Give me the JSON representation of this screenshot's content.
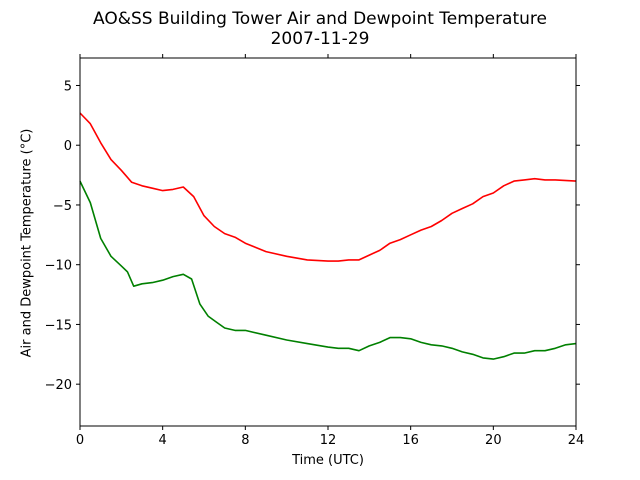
{
  "chart_data": {
    "type": "line",
    "title": "AO&SS Building Tower Air and Dewpoint Temperature",
    "subtitle": "2007-11-29",
    "xlabel": "Time (UTC)",
    "ylabel": "Air and Dewpoint Temperature (°C)",
    "xlim": [
      0,
      24
    ],
    "ylim": [
      -23.5,
      7.3
    ],
    "xticks": [
      0,
      4,
      8,
      12,
      16,
      20,
      24
    ],
    "yticks": [
      5,
      0,
      -5,
      -10,
      -15,
      -20
    ],
    "grid": false,
    "legend": "none",
    "series": [
      {
        "color": "#ff0000",
        "x": [
          0,
          0.5,
          1,
          1.5,
          2,
          2.5,
          3,
          3.5,
          4,
          4.5,
          5,
          5.5,
          6,
          6.5,
          7,
          7.5,
          8,
          9,
          10,
          11,
          12,
          12.5,
          13,
          13.5,
          14,
          14.5,
          15,
          15.5,
          16,
          16.5,
          17,
          17.5,
          18,
          18.5,
          19,
          19.5,
          20,
          20.5,
          21,
          21.5,
          22,
          22.5,
          23,
          24
        ],
        "y": [
          2.7,
          1.8,
          0.2,
          -1.2,
          -2.1,
          -3.1,
          -3.4,
          -3.6,
          -3.8,
          -3.7,
          -3.5,
          -4.3,
          -5.9,
          -6.8,
          -7.4,
          -7.7,
          -8.2,
          -8.9,
          -9.3,
          -9.6,
          -9.7,
          -9.7,
          -9.6,
          -9.6,
          -9.2,
          -8.8,
          -8.2,
          -7.9,
          -7.5,
          -7.1,
          -6.8,
          -6.3,
          -5.7,
          -5.3,
          -4.9,
          -4.3,
          -4.0,
          -3.4,
          -3.0,
          -2.9,
          -2.8,
          -2.9,
          -2.9,
          -3.0
        ]
      },
      {
        "color": "#008000",
        "x": [
          0,
          0.5,
          1,
          1.5,
          2,
          2.3,
          2.6,
          3,
          3.5,
          4,
          4.5,
          5,
          5.4,
          5.8,
          6.2,
          6.6,
          7,
          7.5,
          8,
          9,
          10,
          11,
          12,
          12.5,
          13,
          13.5,
          14,
          14.5,
          15,
          15.5,
          16,
          16.5,
          17,
          17.5,
          18,
          18.5,
          19,
          19.5,
          20,
          20.5,
          21,
          21.5,
          22,
          22.5,
          23,
          23.5,
          24
        ],
        "y": [
          -3.0,
          -4.8,
          -7.8,
          -9.3,
          -10.1,
          -10.6,
          -11.8,
          -11.6,
          -11.5,
          -11.3,
          -11.0,
          -10.8,
          -11.2,
          -13.3,
          -14.3,
          -14.8,
          -15.3,
          -15.5,
          -15.5,
          -15.9,
          -16.3,
          -16.6,
          -16.9,
          -17.0,
          -17.0,
          -17.2,
          -16.8,
          -16.5,
          -16.1,
          -16.1,
          -16.2,
          -16.5,
          -16.7,
          -16.8,
          -17.0,
          -17.3,
          -17.5,
          -17.8,
          -17.9,
          -17.7,
          -17.4,
          -17.4,
          -17.2,
          -17.2,
          -17.0,
          -16.7,
          -16.6
        ]
      }
    ]
  }
}
